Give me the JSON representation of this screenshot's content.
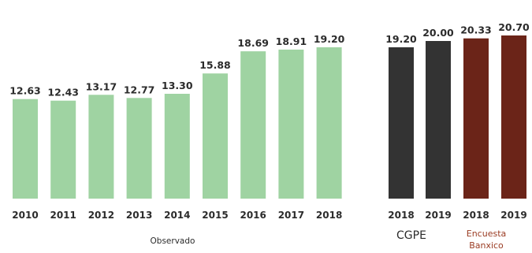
{
  "chart_data": [
    {
      "type": "bar",
      "group_label": "Observado",
      "categories": [
        "2010",
        "2011",
        "2012",
        "2013",
        "2014",
        "2015",
        "2016",
        "2017",
        "2018"
      ],
      "values": [
        12.63,
        12.43,
        13.17,
        12.77,
        13.3,
        15.88,
        18.69,
        18.91,
        19.2
      ],
      "value_labels": [
        "12.63",
        "12.43",
        "13.17",
        "12.77",
        "13.30",
        "15.88",
        "18.69",
        "18.91",
        "19.20"
      ],
      "color": "#9fd3a2"
    },
    {
      "type": "bar",
      "groups": [
        {
          "label": "CGPE",
          "categories": [
            "2018",
            "2019"
          ],
          "values": [
            19.2,
            20.0
          ],
          "value_labels": [
            "19.20",
            "20.00"
          ],
          "color": "#333333"
        },
        {
          "label_lines": [
            "Encuesta",
            "Banxico"
          ],
          "categories": [
            "2018",
            "2019"
          ],
          "values": [
            20.33,
            20.7
          ],
          "value_labels": [
            "20.33",
            "20.70"
          ],
          "color": "#6b2418",
          "label_color": "#9a3b22"
        }
      ]
    }
  ]
}
